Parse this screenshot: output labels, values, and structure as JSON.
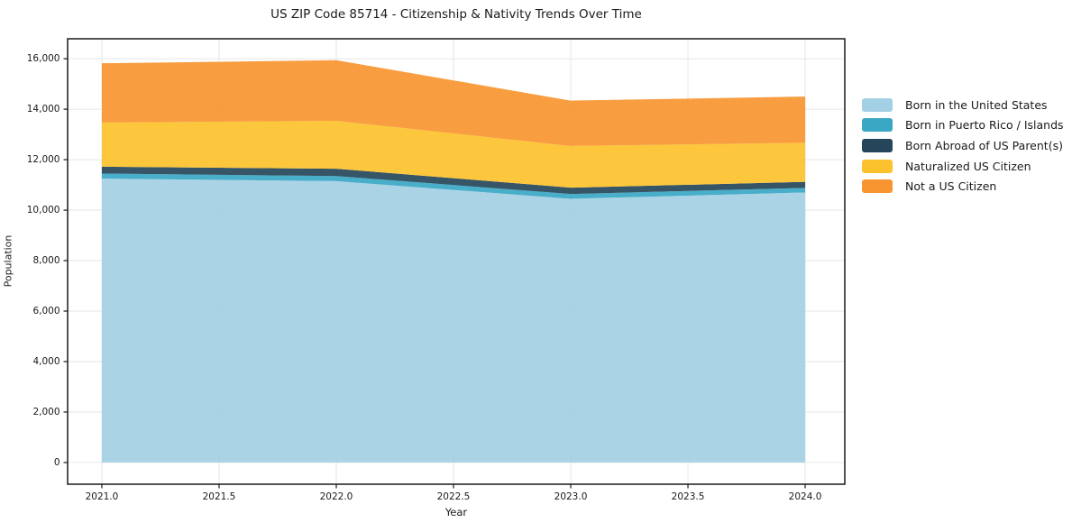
{
  "title": "US ZIP Code 85714 - Citizenship & Nativity Trends Over Time",
  "axes": {
    "xlabel": "Year",
    "ylabel": "Population"
  },
  "chart_data": {
    "type": "area",
    "stacked": true,
    "title": "US ZIP Code 85714 - Citizenship & Nativity Trends Over Time",
    "xlabel": "Year",
    "ylabel": "Population",
    "x": [
      2021,
      2022,
      2023,
      2024
    ],
    "series": [
      {
        "name": "Born in the United States",
        "color": "#a3d0e4",
        "values": [
          11250,
          11150,
          10450,
          10700
        ]
      },
      {
        "name": "Born in Puerto Rico / Islands",
        "color": "#3aa7c4",
        "values": [
          200,
          200,
          190,
          180
        ]
      },
      {
        "name": "Born Abroad of US Parent(s)",
        "color": "#25465a",
        "values": [
          270,
          290,
          250,
          240
        ]
      },
      {
        "name": "Naturalized US Citizen",
        "color": "#fcc22d",
        "values": [
          1750,
          1900,
          1650,
          1550
        ]
      },
      {
        "name": "Not a US Citizen",
        "color": "#f79530",
        "values": [
          2350,
          2400,
          1800,
          1830
        ]
      }
    ],
    "stacked_totals": [
      15820,
      15940,
      14340,
      14500
    ],
    "xticks": [
      2021.0,
      2021.5,
      2022.0,
      2022.5,
      2023.0,
      2023.5,
      2024.0
    ],
    "yticks": [
      0,
      2000,
      4000,
      6000,
      8000,
      10000,
      12000,
      14000,
      16000
    ],
    "xlim": [
      2020.854,
      2024.169
    ],
    "ylim": [
      -860,
      16790
    ],
    "grid": true,
    "legend_position": "right-outside",
    "fill_opacity": 0.92,
    "grid_color": "#e6e6e6",
    "spine_color": "#1a1a1a",
    "background_color": "#ffffff"
  }
}
